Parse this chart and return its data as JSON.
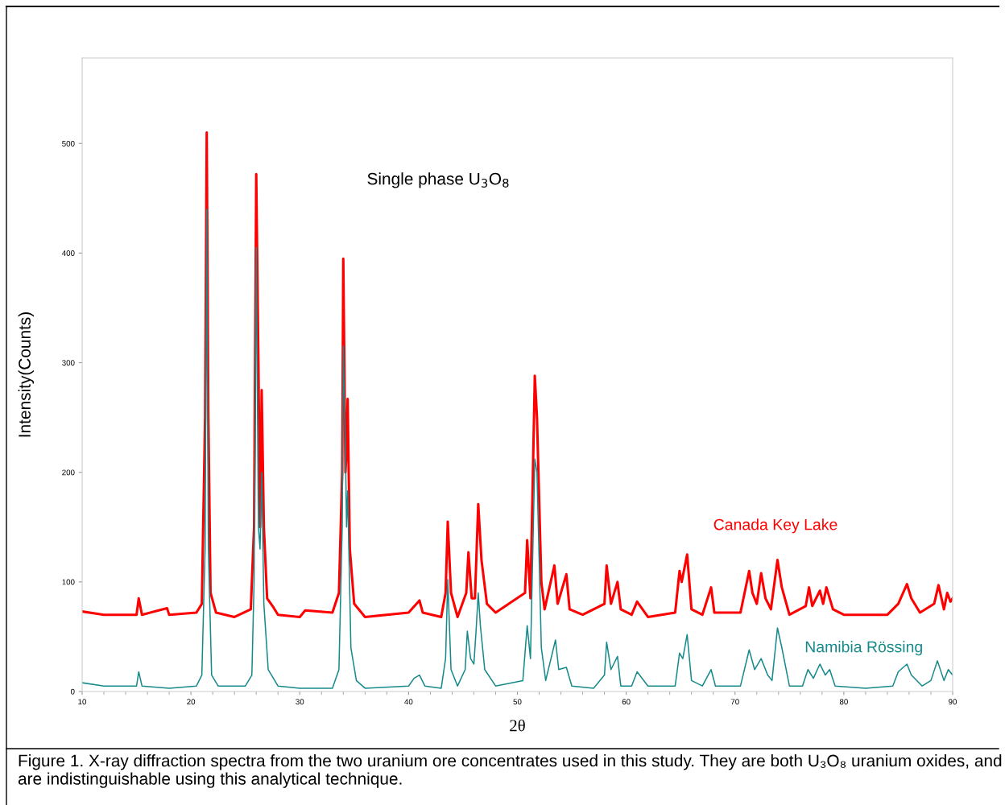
{
  "chart_data": {
    "type": "line",
    "xlabel": "2θ",
    "ylabel": "Intensity(Counts)",
    "xlim": [
      10,
      90
    ],
    "ylim": [
      0,
      578
    ],
    "xticks": [
      10,
      20,
      30,
      40,
      50,
      60,
      70,
      80,
      90
    ],
    "yticks": [
      0,
      100,
      200,
      300,
      400,
      500
    ],
    "grid": false,
    "legend": false,
    "marker": "none",
    "line_style": "solid",
    "annotations": [
      "Single phase U$_{3}$O$_{8}$",
      "Figure 1. X-ray diffraction spectra from the two uranium ore concentrates used in this study. They are both U₃O₈ uranium oxides, and are indistinguishable using this analytical technique."
    ],
    "series": [
      {
        "name": "Canada Key Lake",
        "color": "#ff0000",
        "x": [
          10,
          12,
          15,
          15.2,
          15.5,
          17.8,
          18,
          20.5,
          21,
          21.3,
          21.45,
          21.6,
          21.8,
          22.3,
          24,
          25.5,
          25.8,
          26.0,
          26.2,
          26.35,
          26.5,
          26.7,
          27,
          27.5,
          28,
          30,
          30.5,
          33,
          33.6,
          33.9,
          34.0,
          34.2,
          34.3,
          34.4,
          34.6,
          35,
          36,
          40,
          41,
          41.3,
          43,
          43.4,
          43.6,
          43.9,
          44.5,
          45.3,
          45.5,
          45.8,
          46.1,
          46.4,
          46.7,
          47.2,
          48,
          50.7,
          50.9,
          51.2,
          51.6,
          51.8,
          52.2,
          52.5,
          53.4,
          53.7,
          54.5,
          54.8,
          56,
          58,
          58.2,
          58.6,
          59.2,
          59.5,
          60.5,
          61,
          61.5,
          62,
          64.5,
          64.9,
          65.1,
          65.6,
          66,
          67,
          67.8,
          68.1,
          70.5,
          71.3,
          71.6,
          72.0,
          72.4,
          72.8,
          73.3,
          73.9,
          74.3,
          75,
          76.5,
          76.8,
          77.1,
          77.8,
          78.1,
          78.4,
          79,
          80,
          84,
          85,
          85.8,
          86.2,
          87,
          88.3,
          88.7,
          89.2,
          89.5,
          89.8,
          90
        ],
        "values": [
          73,
          70,
          70,
          85,
          70,
          76,
          70,
          72,
          80,
          250,
          510,
          250,
          90,
          72,
          68,
          75,
          150,
          472,
          300,
          150,
          275,
          150,
          85,
          78,
          70,
          68,
          74,
          72,
          90,
          200,
          395,
          200,
          220,
          267,
          130,
          80,
          68,
          72,
          83,
          72,
          68,
          90,
          155,
          90,
          68,
          90,
          127,
          85,
          85,
          171,
          120,
          80,
          72,
          90,
          138,
          85,
          288,
          250,
          100,
          75,
          115,
          80,
          107,
          75,
          70,
          80,
          115,
          80,
          100,
          75,
          70,
          82,
          75,
          68,
          72,
          110,
          100,
          125,
          75,
          70,
          95,
          72,
          72,
          110,
          90,
          80,
          108,
          85,
          75,
          120,
          95,
          70,
          78,
          95,
          78,
          92,
          80,
          95,
          75,
          70,
          70,
          80,
          98,
          85,
          72,
          80,
          97,
          75,
          90,
          82,
          85
        ]
      },
      {
        "name": "Namibia Rössing",
        "color": "#168a8a",
        "x": [
          10,
          12,
          15,
          15.2,
          15.5,
          18,
          20.5,
          21,
          21.3,
          21.45,
          21.6,
          21.9,
          22.5,
          25,
          25.6,
          25.8,
          26.0,
          26.2,
          26.35,
          26.5,
          26.7,
          27.1,
          28,
          30,
          33,
          33.6,
          33.9,
          34.0,
          34.2,
          34.3,
          34.4,
          34.7,
          35.2,
          36,
          40,
          40.5,
          41,
          41.5,
          43,
          43.4,
          43.6,
          43.9,
          44.5,
          45.2,
          45.4,
          45.7,
          46,
          46.2,
          46.4,
          46.6,
          47,
          48,
          50.5,
          50.9,
          51.2,
          51.6,
          51.8,
          52.2,
          52.6,
          53.5,
          53.8,
          54.5,
          55,
          57,
          58,
          58.2,
          58.6,
          59.2,
          59.5,
          60.5,
          61,
          62,
          64.5,
          64.9,
          65.2,
          65.6,
          66,
          67,
          67.8,
          68.2,
          70.5,
          71.3,
          71.8,
          72.4,
          73,
          73.4,
          73.9,
          74.3,
          75,
          76.2,
          76.7,
          77.2,
          77.8,
          78.3,
          78.7,
          79.2,
          82,
          84.5,
          85,
          85.8,
          86.2,
          87.2,
          88,
          88.6,
          89.2,
          89.6,
          90
        ],
        "values": [
          8,
          5,
          5,
          18,
          5,
          3,
          5,
          15,
          130,
          440,
          130,
          15,
          5,
          5,
          15,
          100,
          405,
          150,
          130,
          200,
          80,
          20,
          5,
          3,
          3,
          20,
          150,
          315,
          220,
          150,
          183,
          40,
          10,
          3,
          5,
          12,
          15,
          5,
          3,
          30,
          102,
          20,
          5,
          20,
          55,
          30,
          25,
          55,
          90,
          60,
          20,
          5,
          10,
          60,
          30,
          212,
          200,
          40,
          10,
          47,
          20,
          22,
          5,
          3,
          15,
          45,
          20,
          32,
          5,
          5,
          18,
          5,
          5,
          35,
          30,
          52,
          10,
          5,
          20,
          5,
          5,
          38,
          20,
          30,
          15,
          10,
          58,
          40,
          5,
          5,
          20,
          12,
          25,
          15,
          20,
          5,
          3,
          5,
          18,
          25,
          15,
          5,
          10,
          28,
          10,
          20,
          15
        ]
      }
    ]
  }
}
